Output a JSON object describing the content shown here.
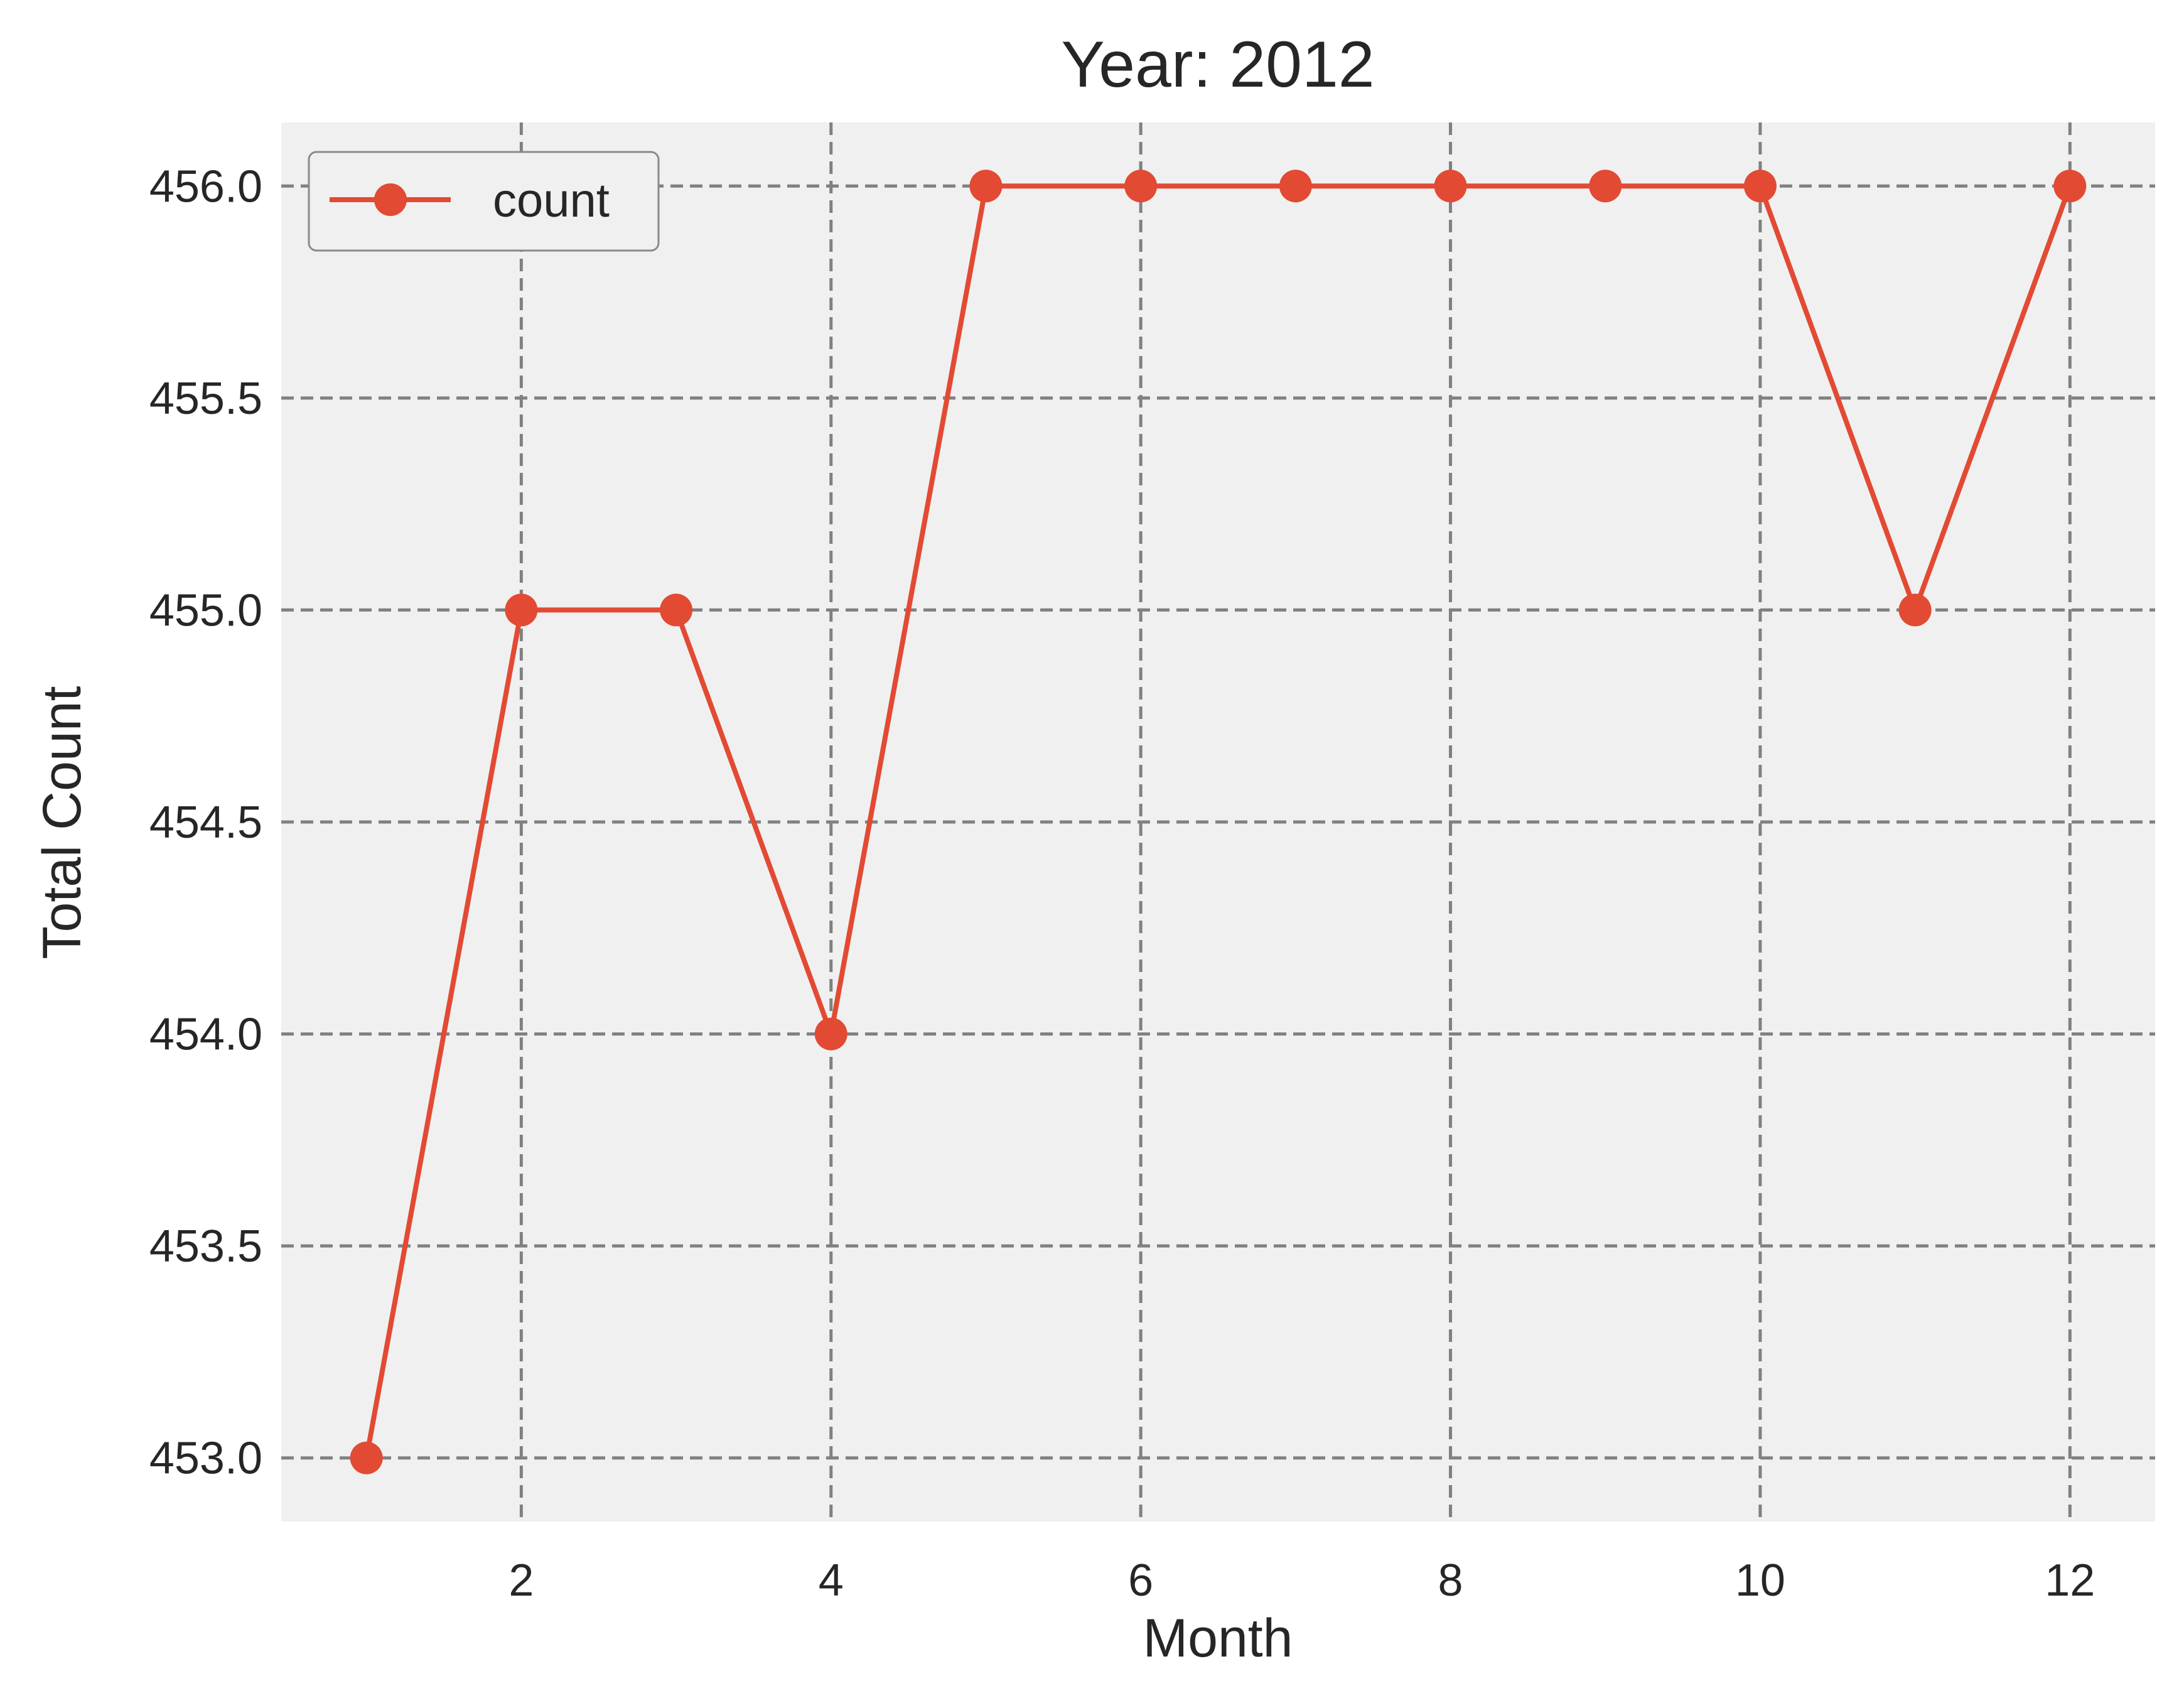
{
  "chart_data": {
    "type": "line",
    "title": "Year: 2012",
    "xlabel": "Month",
    "ylabel": "Total Count",
    "x": [
      1,
      2,
      3,
      4,
      5,
      6,
      7,
      8,
      9,
      10,
      11,
      12
    ],
    "series": [
      {
        "name": "count",
        "values": [
          453.0,
          455.0,
          455.0,
          454.0,
          456.0,
          456.0,
          456.0,
          456.0,
          456.0,
          456.0,
          455.0,
          456.0
        ],
        "color": "#E24A33",
        "marker": "circle"
      }
    ],
    "xlim": [
      0.45,
      12.55
    ],
    "ylim": [
      452.85,
      456.15
    ],
    "xticks": [
      2,
      4,
      6,
      8,
      10,
      12
    ],
    "xtick_labels": [
      "2",
      "4",
      "6",
      "8",
      "10",
      "12"
    ],
    "yticks": [
      453.0,
      453.5,
      454.0,
      454.5,
      455.0,
      455.5,
      456.0
    ],
    "ytick_labels": [
      "453.0",
      "453.5",
      "454.0",
      "454.5",
      "455.0",
      "455.5",
      "456.0"
    ],
    "grid": true,
    "legend_position": "top-left",
    "background_color": "#F0F0F0"
  }
}
